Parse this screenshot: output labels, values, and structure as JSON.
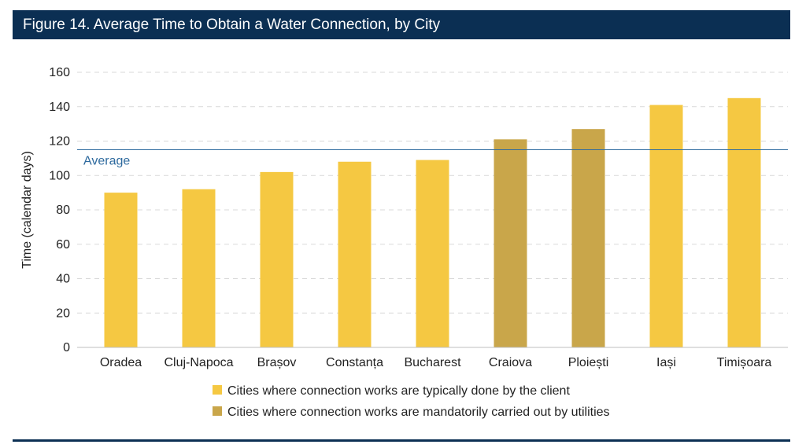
{
  "title": "Figure 14. Average Time to Obtain a Water Connection, by City",
  "chart_data": {
    "type": "bar",
    "title": "Figure 14. Average Time to Obtain a Water Connection, by City",
    "ylabel": "Time (calendar days)",
    "xlabel": "",
    "ylim": [
      0,
      160
    ],
    "yticks": [
      0,
      20,
      40,
      60,
      80,
      100,
      120,
      140,
      160
    ],
    "grid": true,
    "categories": [
      "Oradea",
      "Cluj-Napoca",
      "Brașov",
      "Constanța",
      "Bucharest",
      "Craiova",
      "Ploiești",
      "Iași",
      "Timișoara"
    ],
    "values": [
      90,
      92,
      102,
      108,
      109,
      121,
      127,
      141,
      145
    ],
    "groups": [
      "client",
      "client",
      "client",
      "client",
      "client",
      "utility",
      "utility",
      "client",
      "client"
    ],
    "average": {
      "label": "Average",
      "value": 115
    },
    "legend": {
      "placement": "bottom",
      "entries": [
        {
          "key": "client",
          "label": "Cities where connection works are typically done by the client",
          "color": "#f5c842"
        },
        {
          "key": "utility",
          "label": "Cities where connection works are mandatorily carried out by utilities",
          "color": "#c9a64a"
        }
      ]
    },
    "colors": {
      "client": "#f5c842",
      "utility": "#c9a64a",
      "average_line": "#2e6a9e",
      "grid": "#d9d9d9",
      "axis": "#bfbfbf"
    }
  }
}
